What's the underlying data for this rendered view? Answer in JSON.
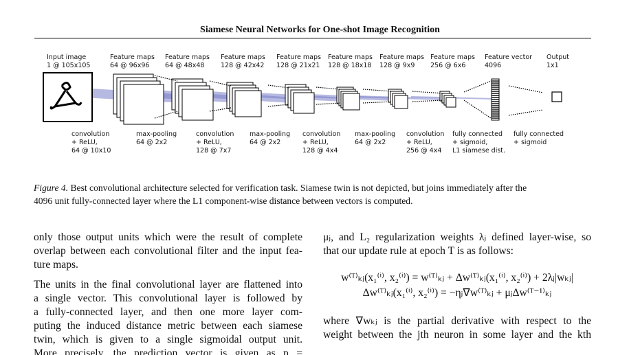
{
  "header": {
    "title": "Siamese Neural Networks for One-shot Image Recognition"
  },
  "figure": {
    "top_labels": [
      [
        "Input image",
        "1 @ 105x105"
      ],
      [
        "Feature maps",
        "64 @ 96x96"
      ],
      [
        "Feature maps",
        "64 @ 48x48"
      ],
      [
        "Feature maps",
        "128 @ 42x42"
      ],
      [
        "Feature maps",
        "128 @ 21x21"
      ],
      [
        "Feature maps",
        "128 @ 18x18"
      ],
      [
        "Feature maps",
        "128 @ 9x9"
      ],
      [
        "Feature maps",
        "256 @ 6x6"
      ],
      [
        "Feature vector",
        "4096"
      ],
      [
        "Output",
        "1x1"
      ]
    ],
    "bottom_labels": [
      [
        "convolution",
        "+ ReLU,",
        "64 @ 10x10"
      ],
      [
        "max-pooling",
        "64 @ 2x2"
      ],
      [
        "convolution",
        "+ ReLU,",
        "128 @ 7x7"
      ],
      [
        "max-pooling",
        "64 @ 2x2"
      ],
      [
        "convolution",
        "+ ReLU,",
        "128 @ 4x4"
      ],
      [
        "max-pooling",
        "64 @ 2x2"
      ],
      [
        "convolution",
        "+ ReLU,",
        "256 @ 4x4"
      ],
      [
        "fully connected",
        "+ sigmoid,",
        "L1 siamese dist."
      ],
      [
        "fully connected",
        "+ sigmoid"
      ]
    ],
    "caption": {
      "label": "Figure 4.",
      "lines": [
        " Best convolutional architecture selected for verification task. Siamese twin is not depicted, but joins immediately after the",
        "4096 unit fully-connected layer where the L1 component-wise distance between vectors is computed."
      ]
    }
  },
  "left_column": {
    "paragraphs": [
      [
        "only those output units which were the result of complete",
        "overlap between each convolutional filter and the input fea-",
        "ture maps."
      ],
      [
        "The units in the final convolutional layer are flattened into",
        "a single vector. This convolutional layer is followed by",
        "a fully-connected layer, and then one more layer com-",
        "puting the induced distance metric between each siamese",
        "twin, which is given to a single sigmoidal output unit.",
        "More precisely, the prediction vector is given as p ="
      ]
    ]
  },
  "right_column": {
    "intro_lines": [
      "μⱼ, and L₂ regularization weights λⱼ defined layer-wise, so",
      "that our update rule at epoch T is as follows:"
    ],
    "equations": [
      "w⁽ᵀ⁾ₖⱼ(x₁⁽ⁱ⁾, x₂⁽ⁱ⁾) = w⁽ᵀ⁾ₖⱼ + Δw⁽ᵀ⁾ₖⱼ(x₁⁽ⁱ⁾, x₂⁽ⁱ⁾) + 2λⱼ|wₖⱼ|",
      "Δw⁽ᵀ⁾ₖⱼ(x₁⁽ⁱ⁾, x₂⁽ⁱ⁾) = −ηⱼ∇w⁽ᵀ⁾ₖⱼ + μⱼΔw⁽ᵀ⁻¹⁾ₖⱼ"
    ],
    "outro_lines": [
      "where ∇wₖⱼ is the partial derivative with respect to the",
      "weight between the jth neuron in some layer and the kth"
    ]
  }
}
